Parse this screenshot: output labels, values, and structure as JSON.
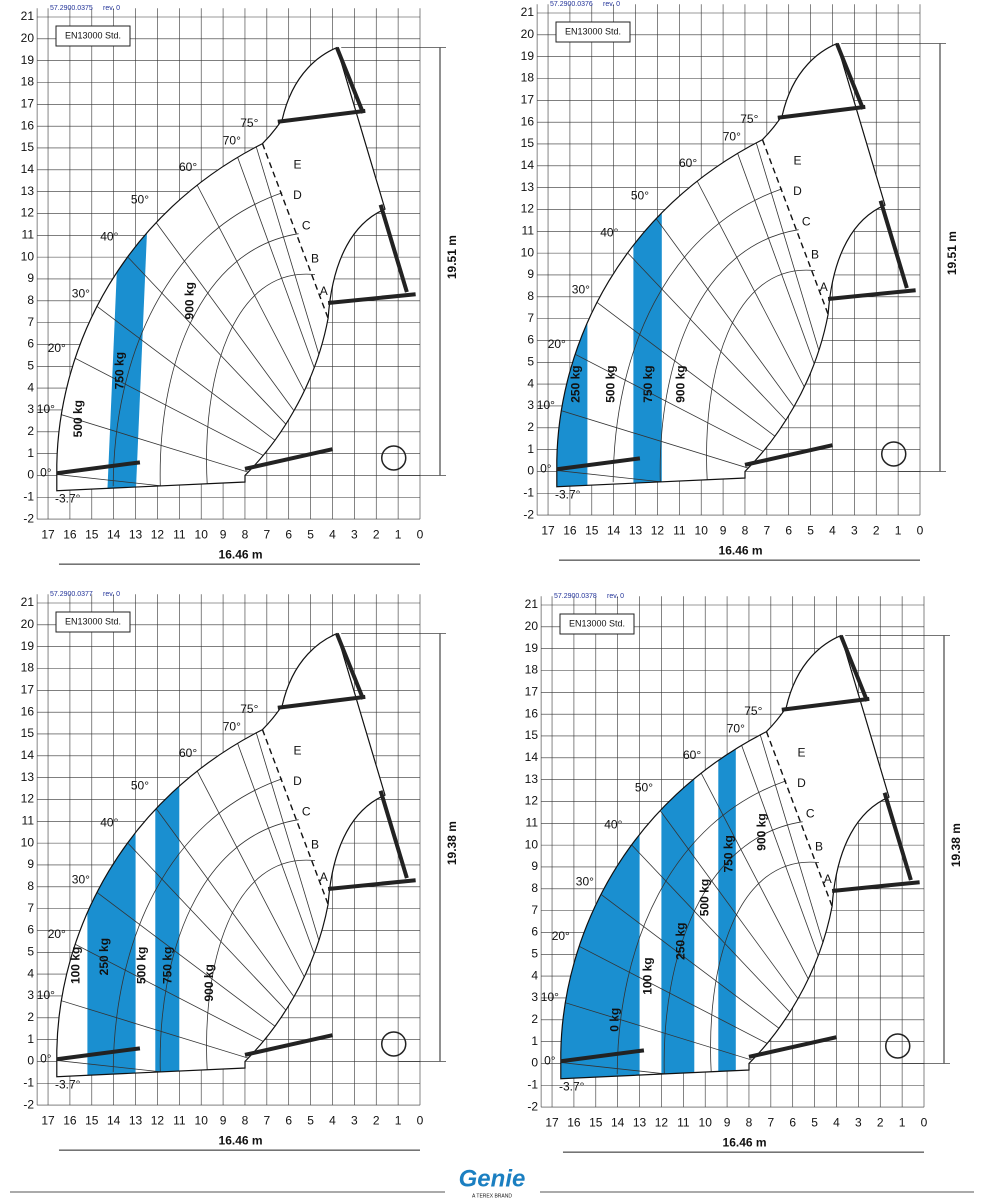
{
  "panels": [
    {
      "doc_id": "57.2900.0375",
      "rev": "rev. 0",
      "standard": "EN13000 Std.",
      "height": "19.51 m",
      "reach": "16.46 m",
      "angles": [
        "75°",
        "70°",
        "60°",
        "50°",
        "40°",
        "30°",
        "20°",
        "10°",
        "0°",
        "-3.7°"
      ],
      "zones": [
        "A",
        "B",
        "C",
        "D",
        "E"
      ],
      "loads": [
        "500 kg",
        "750 kg",
        "900 kg"
      ]
    },
    {
      "doc_id": "57.2900.0376",
      "rev": "rev. 0",
      "standard": "EN13000 Std.",
      "height": "19.51 m",
      "reach": "16.46 m",
      "angles": [
        "75°",
        "70°",
        "60°",
        "50°",
        "40°",
        "30°",
        "20°",
        "10°",
        "0°",
        "-3.7°"
      ],
      "zones": [
        "A",
        "B",
        "C",
        "D",
        "E"
      ],
      "loads": [
        "250 kg",
        "500 kg",
        "750 kg",
        "900 kg"
      ]
    },
    {
      "doc_id": "57.2900.0377",
      "rev": "rev. 0",
      "standard": "EN13000 Std.",
      "height": "19.38 m",
      "reach": "16.46 m",
      "angles": [
        "75°",
        "70°",
        "60°",
        "50°",
        "40°",
        "30°",
        "20°",
        "10°",
        "0°",
        "-3.7°"
      ],
      "zones": [
        "A",
        "B",
        "C",
        "D",
        "E"
      ],
      "loads": [
        "100 kg",
        "250 kg",
        "500 kg",
        "750 kg",
        "900 kg"
      ]
    },
    {
      "doc_id": "57.2900.0378",
      "rev": "rev. 0",
      "standard": "EN13000 Std.",
      "height": "19.38 m",
      "reach": "16.46 m",
      "angles": [
        "75°",
        "70°",
        "60°",
        "50°",
        "40°",
        "30°",
        "20°",
        "10°",
        "0°",
        "-3.7°"
      ],
      "zones": [
        "A",
        "B",
        "C",
        "D",
        "E"
      ],
      "loads": [
        "0 kg",
        "100 kg",
        "250 kg",
        "500 kg",
        "750 kg",
        "900 kg"
      ]
    }
  ],
  "x_ticks": [
    "17",
    "16",
    "15",
    "14",
    "13",
    "12",
    "11",
    "10",
    "9",
    "8",
    "7",
    "6",
    "5",
    "4",
    "3",
    "2",
    "1",
    "0"
  ],
  "y_ticks": [
    "21",
    "20",
    "19",
    "18",
    "17",
    "16",
    "15",
    "14",
    "13",
    "12",
    "11",
    "10",
    "9",
    "8",
    "7",
    "6",
    "5",
    "4",
    "3",
    "2",
    "1",
    "0",
    "-1",
    "-2"
  ],
  "footer": {
    "brand": "Genie",
    "tagline": "A TEREX BRAND"
  }
}
